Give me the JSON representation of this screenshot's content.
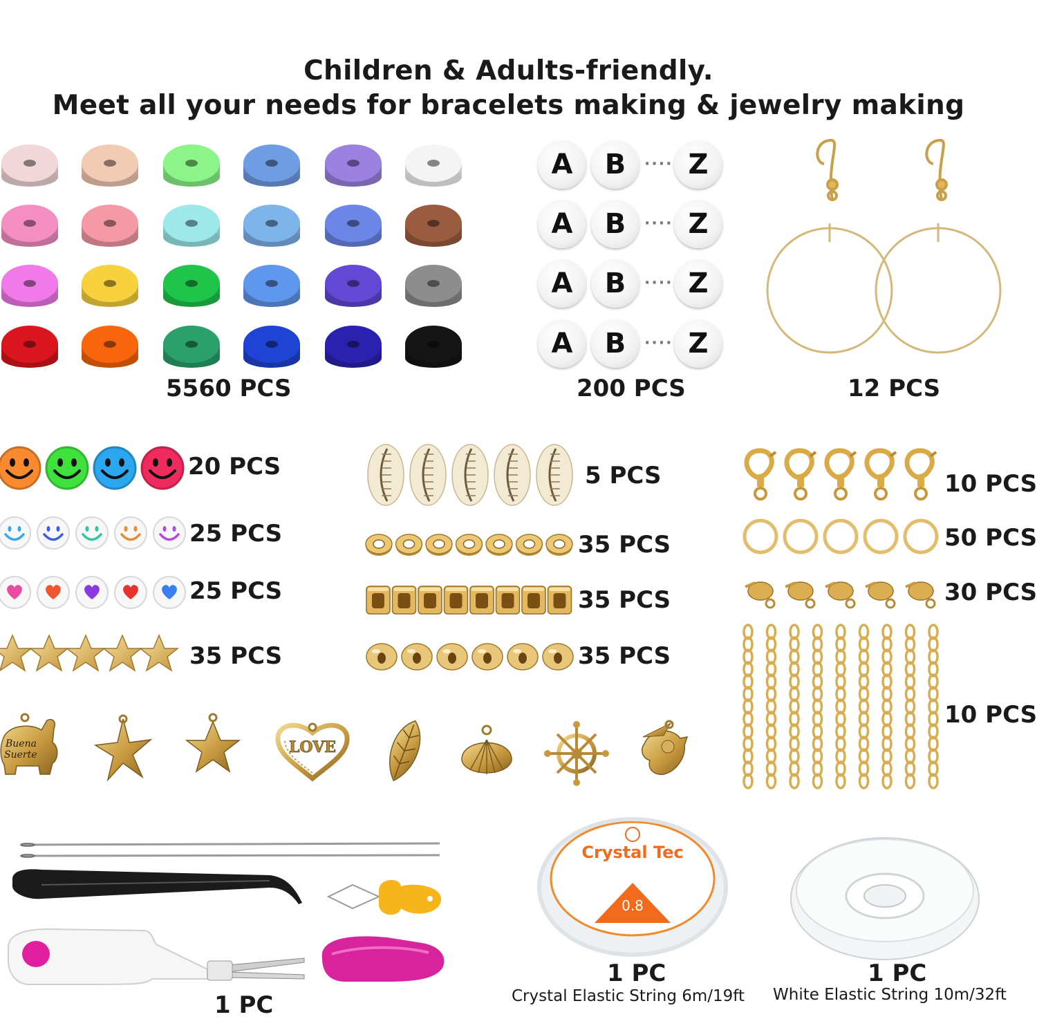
{
  "header": {
    "line1": "Children & Adults-friendly.",
    "line2": "Meet all your needs for bracelets making & jewelry making"
  },
  "clay_beads": {
    "quantity": "5560 PCS",
    "colors": [
      [
        "#f1d7d9",
        "#f2cbb4",
        "#8cf58a",
        "#6f9de4",
        "#9c82e0",
        "#f4f4f4"
      ],
      [
        "#f58fc3",
        "#f59aa4",
        "#9de9ea",
        "#7db4ea",
        "#6b86e6",
        "#9a5c3e"
      ],
      [
        "#ef7ae8",
        "#f7d23e",
        "#1fc54a",
        "#5f97ec",
        "#6248d4",
        "#8d8d8d"
      ],
      [
        "#d9161e",
        "#f9650c",
        "#2aa06a",
        "#1f43d3",
        "#2b21b0",
        "#151515"
      ]
    ]
  },
  "letter_beads": {
    "quantity": "200 PCS",
    "letters": [
      "A",
      "B",
      "Z"
    ],
    "ellipsis": "····"
  },
  "earring_hooks": {
    "quantity": "12 PCS"
  },
  "smiley_beads": {
    "quantity": "20 PCS",
    "colors": [
      "#f98a2f",
      "#3fe23c",
      "#2aa7ef",
      "#ef2a5c"
    ]
  },
  "white_smiley_beads": {
    "quantity": "25 PCS",
    "colors": [
      "#38a8ee",
      "#3b5fe0",
      "#2bc8a0",
      "#e88a3a",
      "#b04ae0"
    ]
  },
  "heart_beads": {
    "quantity": "25 PCS",
    "colors": [
      "#e84ca0",
      "#f0562d",
      "#8a3ae0",
      "#e8322e",
      "#3a7ff0"
    ]
  },
  "star_beads": {
    "quantity": "35 PCS"
  },
  "shells": {
    "quantity": "5 PCS"
  },
  "flat_spacers": {
    "quantity": "35 PCS"
  },
  "cube_spacers": {
    "quantity": "35 PCS"
  },
  "round_spacers": {
    "quantity": "35 PCS"
  },
  "lobster_clasps": {
    "quantity": "10 PCS"
  },
  "jump_rings": {
    "quantity": "50 PCS"
  },
  "crimp_covers": {
    "quantity": "30 PCS"
  },
  "extender_chains": {
    "quantity": "10 PCS"
  },
  "charms": {
    "elephant_text": [
      "Buena",
      "Suerte"
    ],
    "heart_text": "LOVE"
  },
  "tools": {
    "quantity": "1 PC"
  },
  "crystal_string": {
    "quantity": "1 PC",
    "caption": "Crystal Elastic String 6m/19ft",
    "brand": "Crystal Tec",
    "size_label": "0.8"
  },
  "white_string": {
    "quantity": "1 PC",
    "caption": "White Elastic String 10m/32ft"
  },
  "colors": {
    "gold": "#d9b25a",
    "gold_dark": "#a8802c",
    "gold_light": "#f3dc98",
    "text": "#1a1a1a"
  }
}
